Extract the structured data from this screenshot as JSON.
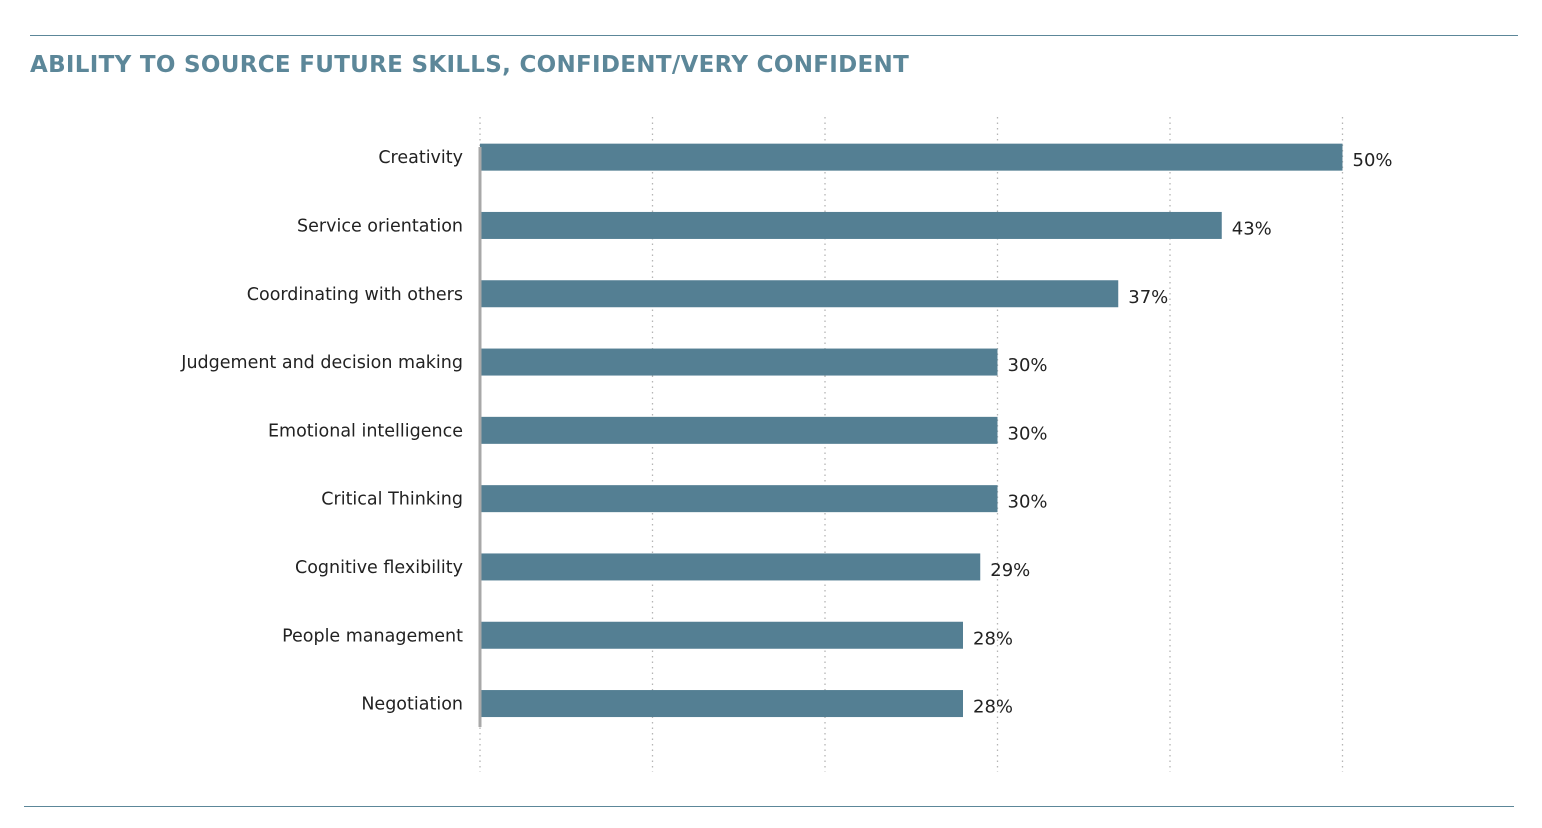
{
  "title": "ABILITY TO SOURCE FUTURE SKILLS, CONFIDENT/VERY CONFIDENT",
  "colors": {
    "bar": "#547f93",
    "rule": "#5c8799",
    "grid": "#b5b5b5",
    "axis": "#a8a8a8"
  },
  "chart_data": {
    "type": "bar",
    "orientation": "horizontal",
    "title": "ABILITY TO SOURCE FUTURE SKILLS, CONFIDENT/VERY CONFIDENT",
    "categories": [
      "Creativity",
      "Service orientation",
      "Coordinating with others",
      "Judgement and decision making",
      "Emotional intelligence",
      "Critical Thinking",
      "Cognitive flexibility",
      "People management",
      "Negotiation"
    ],
    "values": [
      50,
      43,
      37,
      30,
      30,
      30,
      29,
      28,
      28
    ],
    "value_labels": [
      "50%",
      "43%",
      "37%",
      "30%",
      "30%",
      "30%",
      "29%",
      "28%",
      "28%"
    ],
    "xlim": [
      0,
      60
    ],
    "grid": true,
    "grid_style": "dotted vertical",
    "tick_labels_shown": false,
    "legend": "none"
  }
}
